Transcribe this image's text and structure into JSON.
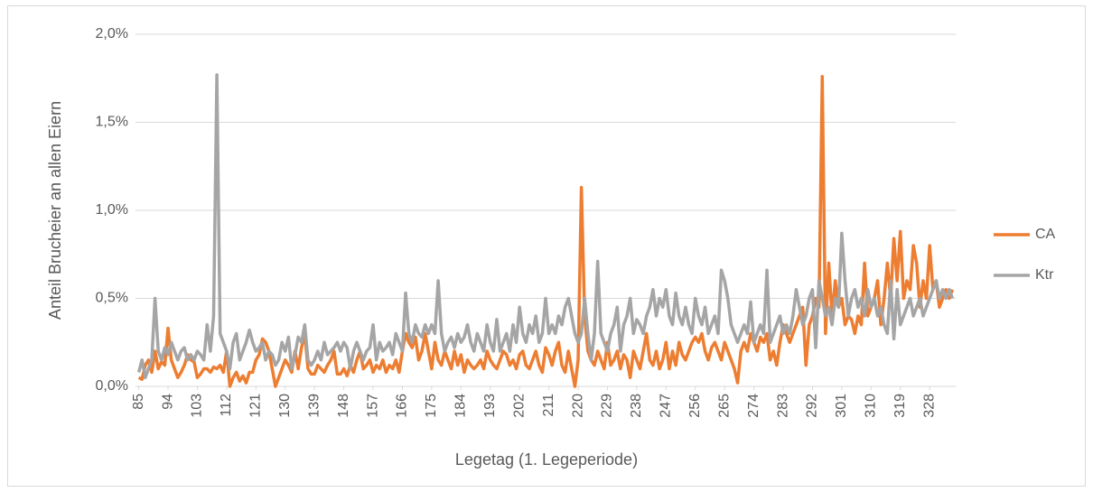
{
  "chart_data": {
    "type": "line",
    "y_label": "Anteil Brucheier an allen Eiern",
    "x_label": "Legetag (1. Legeperiode)",
    "x": [
      85,
      86,
      87,
      88,
      89,
      90,
      91,
      92,
      93,
      94,
      95,
      96,
      97,
      98,
      99,
      100,
      101,
      102,
      103,
      104,
      105,
      106,
      107,
      108,
      109,
      110,
      111,
      112,
      113,
      114,
      115,
      116,
      117,
      118,
      119,
      120,
      121,
      122,
      123,
      124,
      125,
      126,
      127,
      128,
      129,
      130,
      131,
      132,
      133,
      134,
      135,
      136,
      137,
      138,
      139,
      140,
      141,
      142,
      143,
      144,
      145,
      146,
      147,
      148,
      149,
      150,
      151,
      152,
      153,
      154,
      155,
      156,
      157,
      158,
      159,
      160,
      161,
      162,
      163,
      164,
      165,
      166,
      167,
      168,
      169,
      170,
      171,
      172,
      173,
      174,
      175,
      176,
      177,
      178,
      179,
      180,
      181,
      182,
      183,
      184,
      185,
      186,
      187,
      188,
      189,
      190,
      191,
      192,
      193,
      194,
      195,
      196,
      197,
      198,
      199,
      200,
      201,
      202,
      203,
      204,
      205,
      206,
      207,
      208,
      209,
      210,
      211,
      212,
      213,
      214,
      215,
      216,
      217,
      218,
      219,
      220,
      221,
      222,
      223,
      224,
      225,
      226,
      227,
      228,
      229,
      230,
      231,
      232,
      233,
      234,
      235,
      236,
      237,
      238,
      239,
      240,
      241,
      242,
      243,
      244,
      245,
      246,
      247,
      248,
      249,
      250,
      251,
      252,
      253,
      254,
      255,
      256,
      257,
      258,
      259,
      260,
      261,
      262,
      263,
      264,
      265,
      266,
      267,
      268,
      269,
      270,
      271,
      272,
      273,
      274,
      275,
      276,
      277,
      278,
      279,
      280,
      281,
      282,
      283,
      284,
      285,
      286,
      287,
      288,
      289,
      290,
      291,
      292,
      293,
      294,
      295,
      296,
      297,
      298,
      299,
      300,
      301,
      302,
      303,
      304,
      305,
      306,
      307,
      308,
      309,
      310,
      311,
      312,
      313,
      314,
      315,
      316,
      317,
      318,
      319,
      320,
      321,
      322,
      323,
      324,
      325,
      326,
      327,
      328,
      329,
      330,
      331,
      332,
      333,
      334,
      335
    ],
    "series": [
      {
        "name": "CA",
        "color": "#ed7d31",
        "values": [
          0.05,
          0.04,
          0.12,
          0.15,
          0.08,
          0.2,
          0.1,
          0.14,
          0.12,
          0.33,
          0.15,
          0.1,
          0.05,
          0.08,
          0.12,
          0.18,
          0.15,
          0.14,
          0.05,
          0.07,
          0.1,
          0.1,
          0.08,
          0.11,
          0.1,
          0.12,
          0.08,
          0.2,
          0.0,
          0.05,
          0.08,
          0.03,
          0.06,
          0.02,
          0.08,
          0.08,
          0.15,
          0.18,
          0.27,
          0.25,
          0.2,
          0.1,
          0.0,
          0.05,
          0.1,
          0.15,
          0.12,
          0.08,
          0.2,
          0.1,
          0.22,
          0.3,
          0.1,
          0.07,
          0.07,
          0.12,
          0.1,
          0.08,
          0.12,
          0.15,
          0.2,
          0.07,
          0.07,
          0.1,
          0.06,
          0.12,
          0.08,
          0.15,
          0.2,
          0.1,
          0.12,
          0.15,
          0.08,
          0.12,
          0.1,
          0.15,
          0.08,
          0.12,
          0.1,
          0.15,
          0.08,
          0.2,
          0.3,
          0.25,
          0.22,
          0.28,
          0.15,
          0.2,
          0.3,
          0.2,
          0.1,
          0.25,
          0.15,
          0.12,
          0.2,
          0.15,
          0.1,
          0.2,
          0.12,
          0.18,
          0.08,
          0.15,
          0.12,
          0.1,
          0.12,
          0.15,
          0.1,
          0.2,
          0.15,
          0.12,
          0.1,
          0.15,
          0.2,
          0.18,
          0.12,
          0.15,
          0.1,
          0.18,
          0.2,
          0.12,
          0.1,
          0.15,
          0.2,
          0.12,
          0.08,
          0.22,
          0.18,
          0.12,
          0.2,
          0.25,
          0.12,
          0.08,
          0.2,
          0.1,
          0.0,
          0.15,
          1.13,
          0.4,
          0.2,
          0.15,
          0.12,
          0.2,
          0.15,
          0.1,
          0.25,
          0.12,
          0.15,
          0.2,
          0.1,
          0.18,
          0.15,
          0.05,
          0.2,
          0.15,
          0.1,
          0.2,
          0.3,
          0.15,
          0.12,
          0.2,
          0.1,
          0.15,
          0.25,
          0.1,
          0.2,
          0.12,
          0.25,
          0.18,
          0.15,
          0.2,
          0.25,
          0.28,
          0.25,
          0.3,
          0.2,
          0.15,
          0.22,
          0.25,
          0.2,
          0.15,
          0.25,
          0.2,
          0.15,
          0.1,
          0.02,
          0.2,
          0.25,
          0.2,
          0.3,
          0.25,
          0.2,
          0.28,
          0.25,
          0.3,
          0.15,
          0.2,
          0.12,
          0.25,
          0.35,
          0.3,
          0.25,
          0.3,
          0.35,
          0.4,
          0.45,
          0.12,
          0.35,
          0.4,
          0.5,
          0.45,
          1.76,
          0.3,
          0.7,
          0.4,
          0.6,
          0.45,
          0.5,
          0.35,
          0.4,
          0.38,
          0.3,
          0.4,
          0.35,
          0.7,
          0.4,
          0.45,
          0.5,
          0.6,
          0.35,
          0.5,
          0.7,
          0.5,
          0.84,
          0.6,
          0.88,
          0.5,
          0.6,
          0.55,
          0.8,
          0.7,
          0.45,
          0.6,
          0.5,
          0.8,
          0.55,
          0.6,
          0.45,
          0.5,
          0.55,
          0.5,
          0.55
        ]
      },
      {
        "name": "Ktr",
        "color": "#a5a5a5",
        "values": [
          0.08,
          0.15,
          0.05,
          0.1,
          0.15,
          0.5,
          0.2,
          0.15,
          0.22,
          0.18,
          0.25,
          0.2,
          0.15,
          0.2,
          0.22,
          0.15,
          0.18,
          0.15,
          0.2,
          0.18,
          0.15,
          0.35,
          0.2,
          0.4,
          1.77,
          0.3,
          0.25,
          0.2,
          0.1,
          0.25,
          0.3,
          0.15,
          0.2,
          0.25,
          0.32,
          0.25,
          0.2,
          0.22,
          0.25,
          0.15,
          0.2,
          0.18,
          0.12,
          0.15,
          0.25,
          0.2,
          0.28,
          0.1,
          0.18,
          0.28,
          0.25,
          0.35,
          0.15,
          0.12,
          0.15,
          0.2,
          0.15,
          0.25,
          0.18,
          0.2,
          0.22,
          0.25,
          0.2,
          0.25,
          0.22,
          0.1,
          0.2,
          0.25,
          0.2,
          0.15,
          0.2,
          0.22,
          0.35,
          0.15,
          0.25,
          0.2,
          0.22,
          0.25,
          0.18,
          0.3,
          0.25,
          0.2,
          0.53,
          0.3,
          0.25,
          0.35,
          0.3,
          0.28,
          0.35,
          0.3,
          0.35,
          0.3,
          0.6,
          0.3,
          0.2,
          0.25,
          0.28,
          0.22,
          0.3,
          0.25,
          0.28,
          0.35,
          0.25,
          0.2,
          0.3,
          0.25,
          0.2,
          0.35,
          0.25,
          0.2,
          0.38,
          0.2,
          0.25,
          0.3,
          0.2,
          0.35,
          0.25,
          0.45,
          0.3,
          0.25,
          0.35,
          0.3,
          0.4,
          0.25,
          0.3,
          0.5,
          0.3,
          0.35,
          0.3,
          0.4,
          0.35,
          0.45,
          0.5,
          0.4,
          0.3,
          0.25,
          0.3,
          0.5,
          0.3,
          0.15,
          0.3,
          0.71,
          0.3,
          0.25,
          0.2,
          0.3,
          0.35,
          0.45,
          0.2,
          0.35,
          0.4,
          0.5,
          0.3,
          0.38,
          0.35,
          0.3,
          0.4,
          0.45,
          0.55,
          0.4,
          0.5,
          0.45,
          0.55,
          0.4,
          0.35,
          0.53,
          0.4,
          0.35,
          0.45,
          0.35,
          0.3,
          0.5,
          0.4,
          0.35,
          0.45,
          0.3,
          0.35,
          0.4,
          0.3,
          0.66,
          0.6,
          0.5,
          0.35,
          0.3,
          0.25,
          0.3,
          0.35,
          0.3,
          0.48,
          0.25,
          0.3,
          0.35,
          0.3,
          0.66,
          0.25,
          0.3,
          0.35,
          0.4,
          0.3,
          0.35,
          0.3,
          0.4,
          0.55,
          0.45,
          0.35,
          0.4,
          0.5,
          0.55,
          0.22,
          0.6,
          0.5,
          0.4,
          0.45,
          0.35,
          0.5,
          0.45,
          0.87,
          0.6,
          0.4,
          0.5,
          0.55,
          0.45,
          0.5,
          0.4,
          0.55,
          0.45,
          0.5,
          0.4,
          0.45,
          0.35,
          0.3,
          0.6,
          0.27,
          0.55,
          0.35,
          0.4,
          0.45,
          0.5,
          0.4,
          0.45,
          0.5,
          0.4,
          0.45,
          0.5,
          0.55,
          0.6,
          0.5,
          0.55,
          0.5,
          0.55,
          0.5
        ]
      }
    ],
    "xlim": [
      84,
      336
    ],
    "xticks": [
      85,
      94,
      103,
      112,
      121,
      130,
      139,
      148,
      157,
      166,
      175,
      184,
      193,
      202,
      211,
      220,
      229,
      238,
      247,
      256,
      265,
      274,
      283,
      292,
      301,
      310,
      319,
      328
    ],
    "ylim": [
      0,
      2
    ],
    "yticks": [
      {
        "value": 0,
        "label": "0,0%"
      },
      {
        "value": 0.5,
        "label": "0,5%"
      },
      {
        "value": 1,
        "label": "1,0%"
      },
      {
        "value": 1.5,
        "label": "1,5%"
      },
      {
        "value": 2,
        "label": "2,0%"
      }
    ],
    "grid": true,
    "legend": "right"
  }
}
